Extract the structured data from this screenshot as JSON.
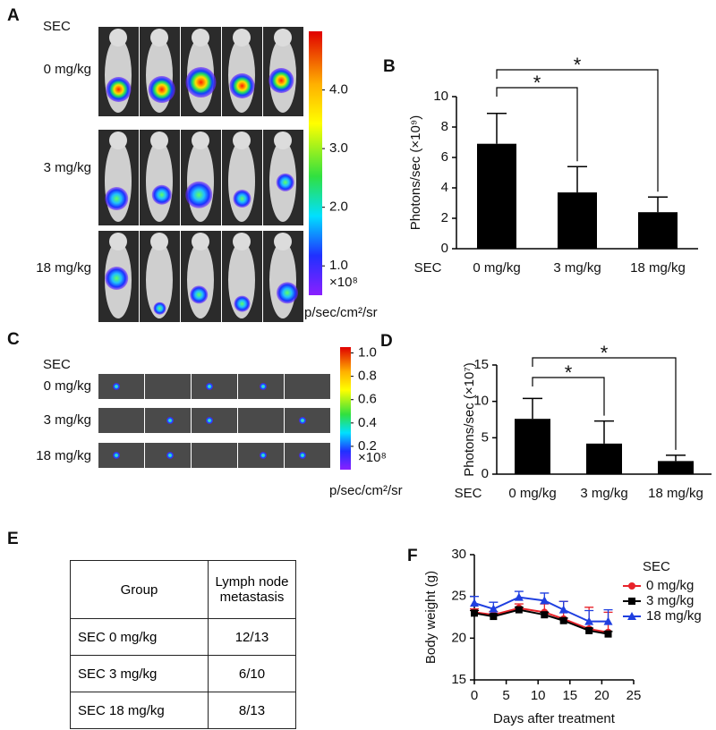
{
  "panel_labels": [
    "A",
    "B",
    "C",
    "D",
    "E",
    "F"
  ],
  "panel_a": {
    "group_label": "SEC",
    "rows": [
      "0 mg/kg",
      "3 mg/kg",
      "18 mg/kg"
    ],
    "colorbar": {
      "range": [
        0.5,
        5.0
      ],
      "ticks": [
        {
          "value": 4,
          "label": "4.0"
        },
        {
          "value": 3,
          "label": "3.0"
        },
        {
          "value": 2,
          "label": "2.0"
        },
        {
          "value": 1,
          "label": "1.0"
        }
      ],
      "multiplier": "×10⁸",
      "unit": "p/sec/cm²/sr"
    }
  },
  "panel_c": {
    "group_label": "SEC",
    "rows": [
      "0 mg/kg",
      "3 mg/kg",
      "18 mg/kg"
    ],
    "colorbar": {
      "range": [
        0,
        1.05
      ],
      "ticks": [
        {
          "value": 1,
          "label": "1.0"
        },
        0.8,
        0.6,
        0.4,
        0.2
      ],
      "multiplier": "×10⁸",
      "unit": "p/sec/cm²/sr"
    }
  },
  "table": {
    "header": [
      "Group",
      "Lymph node metastasis"
    ],
    "rows": [
      [
        "SEC 0 mg/kg",
        "12/13"
      ],
      [
        "SEC 3 mg/kg",
        "6/10"
      ],
      [
        "SEC 18 mg/kg",
        "8/13"
      ]
    ]
  },
  "chart_data": [
    {
      "type": "bar",
      "ylabel": "Photons/sec (×10⁹)",
      "category_axis_label": "SEC",
      "categories": [
        "0 mg/kg",
        "3 mg/kg",
        "18 mg/kg"
      ],
      "values": [
        6.9,
        3.7,
        2.4
      ],
      "errors": [
        2.0,
        1.7,
        1.0
      ],
      "color": "#000000",
      "ylim": [
        0,
        10
      ],
      "yticks": [
        0,
        2,
        4,
        6,
        8,
        10
      ],
      "annotations": [
        "*",
        "*"
      ]
    },
    {
      "type": "bar",
      "ylabel": "Photons/sec (×10⁷)",
      "category_axis_label": "SEC",
      "categories": [
        "0 mg/kg",
        "3 mg/kg",
        "18 mg/kg"
      ],
      "values": [
        7.6,
        4.2,
        1.8
      ],
      "errors": [
        2.8,
        3.1,
        0.8
      ],
      "color": "#000000",
      "ylim": [
        0,
        15
      ],
      "yticks": [
        0,
        5,
        10,
        15
      ],
      "annotations": [
        "*",
        "*"
      ]
    },
    {
      "type": "line",
      "xlabel": "Days after treatment",
      "ylabel": "Body weight (g)",
      "legend_title": "SEC",
      "x": [
        0,
        3,
        7,
        11,
        14,
        18,
        21
      ],
      "series": [
        {
          "name": "0 mg/kg",
          "color": "#e8232a",
          "marker": "circle",
          "values": [
            23.1,
            22.8,
            23.6,
            23.1,
            22.3,
            21.1,
            20.7
          ],
          "errors": [
            0.4,
            0.4,
            0.5,
            1.0,
            2.1,
            2.6,
            2.4
          ]
        },
        {
          "name": "3 mg/kg",
          "color": "#000000",
          "marker": "square",
          "values": [
            23.0,
            22.6,
            23.4,
            22.8,
            22.1,
            20.9,
            20.5
          ],
          "errors": [
            0.3,
            0.3,
            0.3,
            0.3,
            0.3,
            0.3,
            0.3
          ]
        },
        {
          "name": "18 mg/kg",
          "color": "#1f3fe0",
          "marker": "triangle",
          "values": [
            24.2,
            23.5,
            24.9,
            24.5,
            23.4,
            22.0,
            22.0
          ],
          "errors": [
            0.8,
            0.8,
            0.7,
            0.9,
            1.0,
            1.3,
            1.4
          ]
        }
      ],
      "xlim": [
        0,
        25
      ],
      "xticks": [
        0,
        5,
        10,
        15,
        20,
        25
      ],
      "ylim": [
        15,
        30
      ],
      "yticks": [
        15,
        20,
        25,
        30
      ]
    }
  ]
}
